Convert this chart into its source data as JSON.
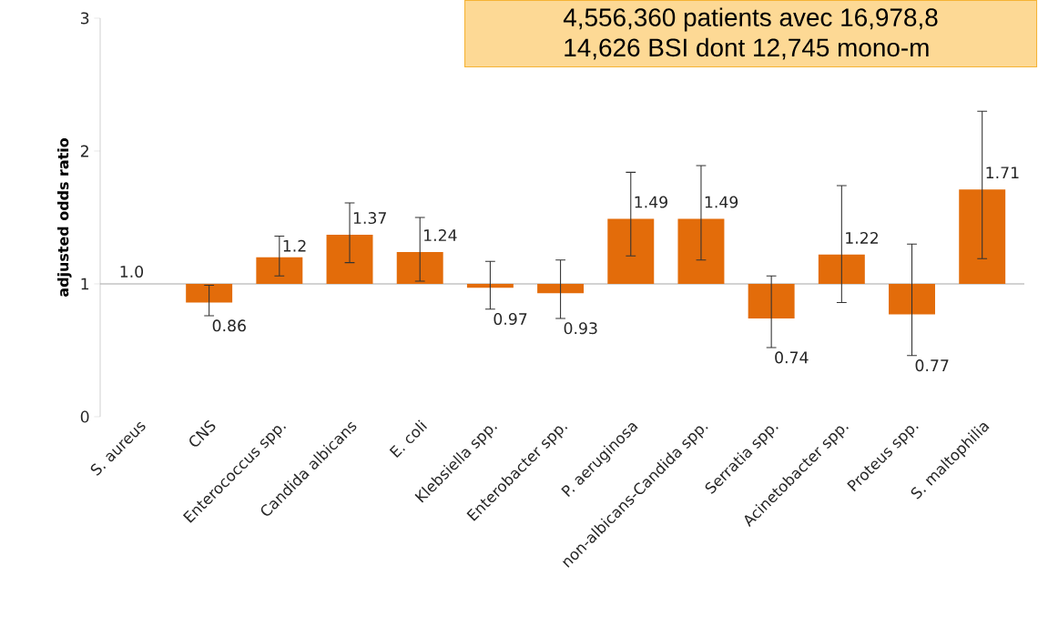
{
  "chart_data": {
    "type": "bar",
    "ylabel": "adjusted odds ratio",
    "categories": [
      "S. aureus",
      "CNS",
      "Enterococcus spp.",
      "Candida albicans",
      "E. coli",
      "Klebsiella spp.",
      "Enterobacter spp.",
      "P. aeruginosa",
      "non-albicans-Candida spp.",
      "Serratia spp.",
      "Acinetobacter spp.",
      "Proteus spp.",
      "S. maltophilia"
    ],
    "values": [
      null,
      -0.14,
      0.2,
      0.37,
      0.24,
      -0.03,
      -0.07,
      0.49,
      0.49,
      -0.26,
      0.22,
      -0.23,
      0.71
    ],
    "base": [
      null,
      1,
      1,
      1,
      1,
      1,
      1,
      1,
      1,
      1,
      1,
      1,
      1
    ],
    "value_labels": [
      null,
      "0.86",
      "1.2",
      "1.37",
      "1.24",
      "0.97",
      "0.93",
      "1.49",
      "1.49",
      "0.74",
      "1.22",
      "0.77",
      "1.71"
    ],
    "errors": [
      null,
      [
        0.76,
        0.99
      ],
      [
        1.06,
        1.36
      ],
      [
        1.16,
        1.61
      ],
      [
        1.02,
        1.5
      ],
      [
        0.81,
        1.17
      ],
      [
        0.74,
        1.18
      ],
      [
        1.21,
        1.84
      ],
      [
        1.18,
        1.89
      ],
      [
        0.52,
        1.06
      ],
      [
        0.86,
        1.74
      ],
      [
        0.46,
        1.3
      ],
      [
        1.19,
        2.3
      ]
    ],
    "color": "#e36c0a",
    "ylim": [
      0,
      3
    ],
    "yticks": [
      0,
      1,
      2,
      3
    ],
    "ref_lines": [
      {
        "axis": "y",
        "value": 1,
        "color": "#a6a6a6"
      }
    ],
    "annotations": [
      "4,556,360 patients avec 16,978,8",
      "14,626 BSI dont 12,745 mono-m",
      {
        "text": "1.0",
        "x": "S. aureus",
        "y": 1
      }
    ],
    "grid": false
  }
}
